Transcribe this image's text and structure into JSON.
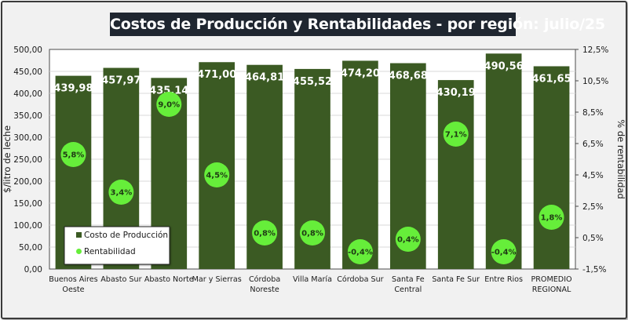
{
  "chart_data": {
    "type": "bar",
    "title": "Costos de Producción y Rentabilidades - por región: julio/25",
    "categories": [
      [
        "Buenos Aires",
        "Oeste"
      ],
      [
        "Abasto Sur"
      ],
      [
        "Abasto Norte"
      ],
      [
        "Mar y Sierras"
      ],
      [
        "Córdoba",
        "Noreste"
      ],
      [
        "Villa María"
      ],
      [
        "Córdoba Sur"
      ],
      [
        "Santa Fe",
        "Central"
      ],
      [
        "Santa Fe Sur"
      ],
      [
        "Entre Rios"
      ],
      [
        "PROMEDIO",
        "REGIONAL"
      ]
    ],
    "series": [
      {
        "name": "Costo de Producción",
        "type": "bar",
        "axis": "left",
        "color": "#3b5a23",
        "values": [
          439.98,
          457.97,
          435.14,
          471.0,
          464.81,
          455.52,
          474.2,
          468.68,
          430.19,
          490.56,
          461.65
        ],
        "labels": [
          "439,98",
          "457,97",
          "435,14",
          "471,00",
          "464,81",
          "455,52",
          "474,20",
          "468,68",
          "430,19",
          "490,56",
          "461,65"
        ]
      },
      {
        "name": "Rentabilidad",
        "type": "scatter",
        "axis": "right",
        "color": "#66ee3a",
        "values": [
          5.8,
          3.4,
          9.0,
          4.5,
          0.8,
          0.8,
          -0.4,
          0.4,
          7.1,
          -0.4,
          1.8
        ],
        "labels": [
          "5,8%",
          "3,4%",
          "9,0%",
          "4,5%",
          "0,8%",
          "0,8%",
          "-0,4%",
          "0,4%",
          "7,1%",
          "-0,4%",
          "1,8%"
        ]
      }
    ],
    "ylabel": "$/litro de leche",
    "ylim": [
      0,
      500
    ],
    "yticks": [
      "0,00",
      "50,00",
      "100,00",
      "150,00",
      "200,00",
      "250,00",
      "300,00",
      "350,00",
      "400,00",
      "450,00",
      "500,00"
    ],
    "y2label": "% de rentabilidad",
    "y2lim": [
      -1.5,
      12.5
    ],
    "y2ticks": [
      "-1,5%",
      "0,5%",
      "2,5%",
      "4,5%",
      "6,5%",
      "8,5%",
      "10,5%",
      "12,5%"
    ],
    "grid": true,
    "legend": {
      "position": "bottom-left",
      "entries": [
        "Costo de Producción",
        "Rentabilidad"
      ]
    }
  }
}
